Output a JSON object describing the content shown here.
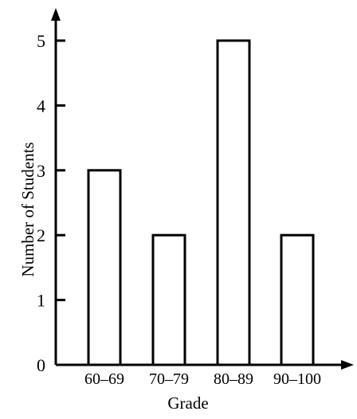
{
  "chart_data": {
    "type": "bar",
    "categories": [
      "60–69",
      "70–79",
      "80–89",
      "90–100"
    ],
    "values": [
      3,
      2,
      5,
      2
    ],
    "xlabel": "Grade",
    "ylabel": "Number of Students",
    "ylim": [
      0,
      5
    ],
    "yticks": [
      "0",
      "1",
      "2",
      "3",
      "4",
      "5"
    ],
    "grid": false,
    "legend": "none",
    "bar_fill": "#ffffff",
    "bar_stroke": "#000000"
  }
}
